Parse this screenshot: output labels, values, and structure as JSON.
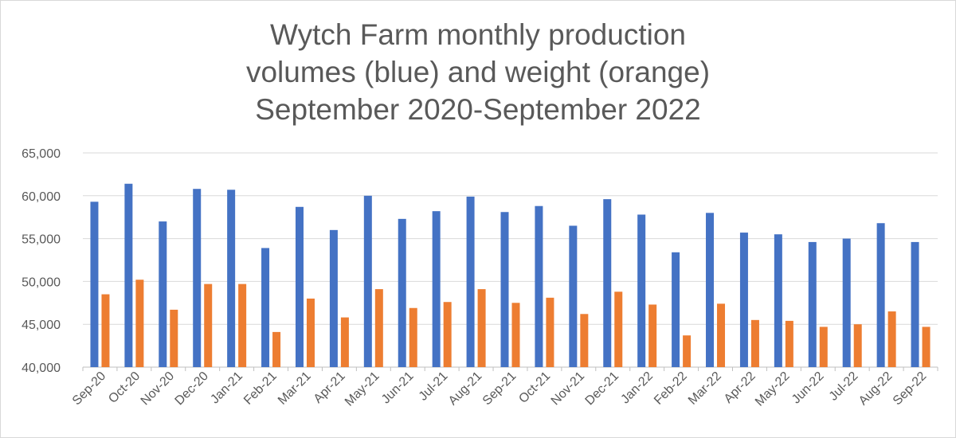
{
  "chart_data": {
    "type": "bar",
    "title_lines": [
      "Wytch Farm monthly production",
      "volumes (blue) and weight (orange)",
      "September 2020-September 2022"
    ],
    "categories": [
      "Sep-20",
      "Oct-20",
      "Nov-20",
      "Dec-20",
      "Jan-21",
      "Feb-21",
      "Mar-21",
      "Apr-21",
      "May-21",
      "Jun-21",
      "Jul-21",
      "Aug-21",
      "Sep-21",
      "Oct-21",
      "Nov-21",
      "Dec-21",
      "Jan-22",
      "Feb-22",
      "Mar-22",
      "Apr-22",
      "May-22",
      "Jun-22",
      "Jul-22",
      "Aug-22",
      "Sep-22"
    ],
    "series": [
      {
        "color": "#4472c4",
        "values": [
          59300,
          61400,
          57000,
          60800,
          60700,
          53900,
          58700,
          56000,
          60000,
          57300,
          58200,
          59900,
          58100,
          58800,
          56500,
          59600,
          57800,
          53400,
          58000,
          55700,
          55500,
          54600,
          55000,
          56800,
          54600
        ]
      },
      {
        "color": "#ed7d31",
        "values": [
          48500,
          50200,
          46700,
          49700,
          49700,
          44100,
          48000,
          45800,
          49100,
          46900,
          47600,
          49100,
          47500,
          48100,
          46200,
          48800,
          47300,
          43700,
          47400,
          45500,
          45400,
          44700,
          45000,
          46500,
          44700
        ]
      }
    ],
    "ylim": [
      40000,
      65000
    ],
    "yticks": [
      "40,000",
      "45,000",
      "50,000",
      "55,000",
      "60,000",
      "65,000"
    ],
    "ytick_values": [
      40000,
      45000,
      50000,
      55000,
      60000,
      65000
    ],
    "xlabel": "",
    "ylabel": "",
    "grid": true,
    "legend": "none"
  },
  "colors": {
    "grid": "#d9d9d9",
    "axis": "#bfbfbf",
    "text": "#595959"
  }
}
